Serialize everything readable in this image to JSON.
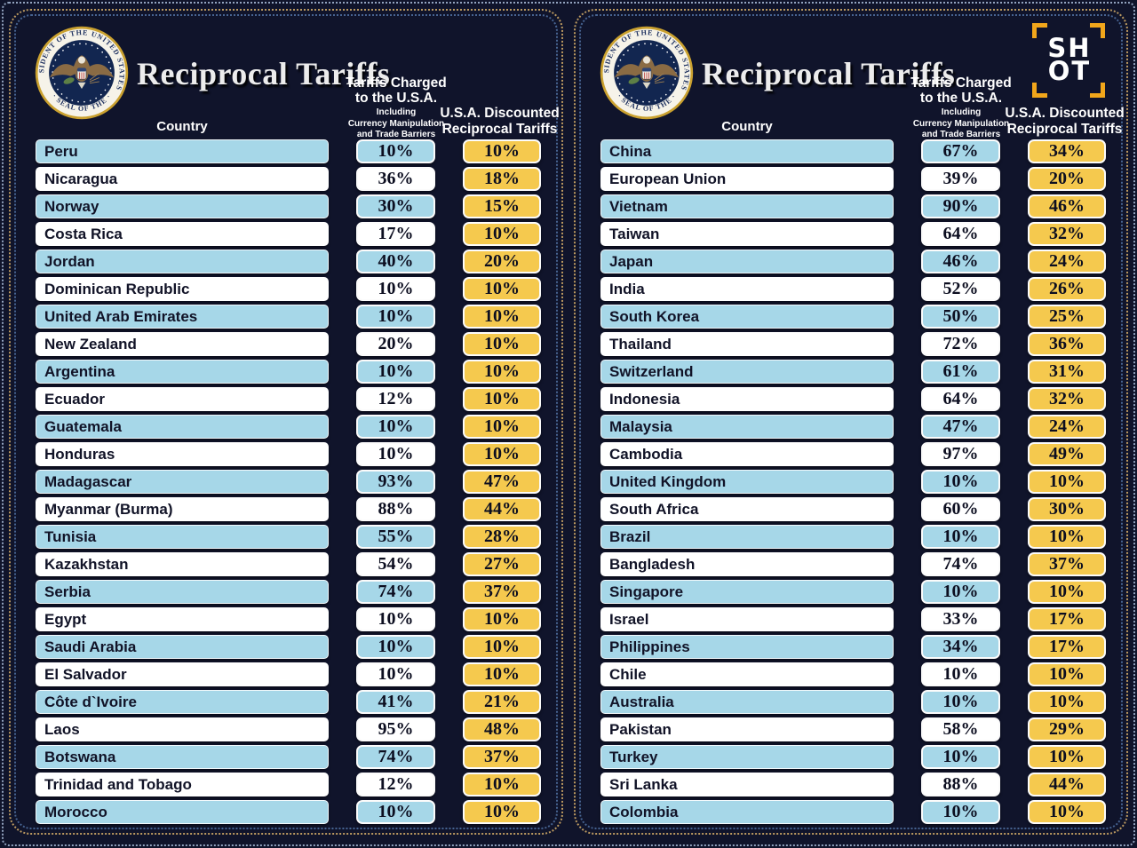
{
  "title": "Reciprocal Tariffs",
  "columns_header": {
    "country": "Country",
    "charged_line1": "Tariffs Charged",
    "charged_line2": "to the U.S.A.",
    "charged_sub1": "Including",
    "charged_sub2": "Currency Manipulation",
    "charged_sub3": "and Trade Barriers",
    "discount_line1": "U.S.A. Discounted",
    "discount_line2": "Reciprocal Tariffs"
  },
  "seal": {
    "top_text": "PRESIDENT OF THE UNITED STATES",
    "bottom_text": "· SEAL OF THE ·"
  },
  "shot_logo": {
    "line1": "SH",
    "line2": "OT"
  },
  "colors": {
    "background": "#10142b",
    "row_blue": "#a6d7e8",
    "row_white": "#ffffff",
    "accent_yellow": "#f5c94e",
    "border_gold": "#bb9960",
    "border_blue": "#4d6d9e",
    "frame_dotted": "#a9bcd9",
    "text_dark": "#111327",
    "header_white": "#ffffff",
    "shot_bracket": "#f2a71b"
  },
  "chart_data": [
    {
      "type": "table",
      "title": "Reciprocal Tariffs",
      "columns": [
        "Country",
        "Tariffs Charged to the U.S.A. Including Currency Manipulation and Trade Barriers",
        "U.S.A. Discounted Reciprocal Tariffs"
      ],
      "rows": [
        [
          "Peru",
          "10%",
          "10%"
        ],
        [
          "Nicaragua",
          "36%",
          "18%"
        ],
        [
          "Norway",
          "30%",
          "15%"
        ],
        [
          "Costa Rica",
          "17%",
          "10%"
        ],
        [
          "Jordan",
          "40%",
          "20%"
        ],
        [
          "Dominican Republic",
          "10%",
          "10%"
        ],
        [
          "United Arab Emirates",
          "10%",
          "10%"
        ],
        [
          "New Zealand",
          "20%",
          "10%"
        ],
        [
          "Argentina",
          "10%",
          "10%"
        ],
        [
          "Ecuador",
          "12%",
          "10%"
        ],
        [
          "Guatemala",
          "10%",
          "10%"
        ],
        [
          "Honduras",
          "10%",
          "10%"
        ],
        [
          "Madagascar",
          "93%",
          "47%"
        ],
        [
          "Myanmar (Burma)",
          "88%",
          "44%"
        ],
        [
          "Tunisia",
          "55%",
          "28%"
        ],
        [
          "Kazakhstan",
          "54%",
          "27%"
        ],
        [
          "Serbia",
          "74%",
          "37%"
        ],
        [
          "Egypt",
          "10%",
          "10%"
        ],
        [
          "Saudi Arabia",
          "10%",
          "10%"
        ],
        [
          "El Salvador",
          "10%",
          "10%"
        ],
        [
          "Côte d`Ivoire",
          "41%",
          "21%"
        ],
        [
          "Laos",
          "95%",
          "48%"
        ],
        [
          "Botswana",
          "74%",
          "37%"
        ],
        [
          "Trinidad and Tobago",
          "12%",
          "10%"
        ],
        [
          "Morocco",
          "10%",
          "10%"
        ]
      ]
    },
    {
      "type": "table",
      "title": "Reciprocal Tariffs",
      "columns": [
        "Country",
        "Tariffs Charged to the U.S.A. Including Currency Manipulation and Trade Barriers",
        "U.S.A. Discounted Reciprocal Tariffs"
      ],
      "rows": [
        [
          "China",
          "67%",
          "34%"
        ],
        [
          "European Union",
          "39%",
          "20%"
        ],
        [
          "Vietnam",
          "90%",
          "46%"
        ],
        [
          "Taiwan",
          "64%",
          "32%"
        ],
        [
          "Japan",
          "46%",
          "24%"
        ],
        [
          "India",
          "52%",
          "26%"
        ],
        [
          "South Korea",
          "50%",
          "25%"
        ],
        [
          "Thailand",
          "72%",
          "36%"
        ],
        [
          "Switzerland",
          "61%",
          "31%"
        ],
        [
          "Indonesia",
          "64%",
          "32%"
        ],
        [
          "Malaysia",
          "47%",
          "24%"
        ],
        [
          "Cambodia",
          "97%",
          "49%"
        ],
        [
          "United Kingdom",
          "10%",
          "10%"
        ],
        [
          "South Africa",
          "60%",
          "30%"
        ],
        [
          "Brazil",
          "10%",
          "10%"
        ],
        [
          "Bangladesh",
          "74%",
          "37%"
        ],
        [
          "Singapore",
          "10%",
          "10%"
        ],
        [
          "Israel",
          "33%",
          "17%"
        ],
        [
          "Philippines",
          "34%",
          "17%"
        ],
        [
          "Chile",
          "10%",
          "10%"
        ],
        [
          "Australia",
          "10%",
          "10%"
        ],
        [
          "Pakistan",
          "58%",
          "29%"
        ],
        [
          "Turkey",
          "10%",
          "10%"
        ],
        [
          "Sri Lanka",
          "88%",
          "44%"
        ],
        [
          "Colombia",
          "10%",
          "10%"
        ]
      ]
    }
  ]
}
